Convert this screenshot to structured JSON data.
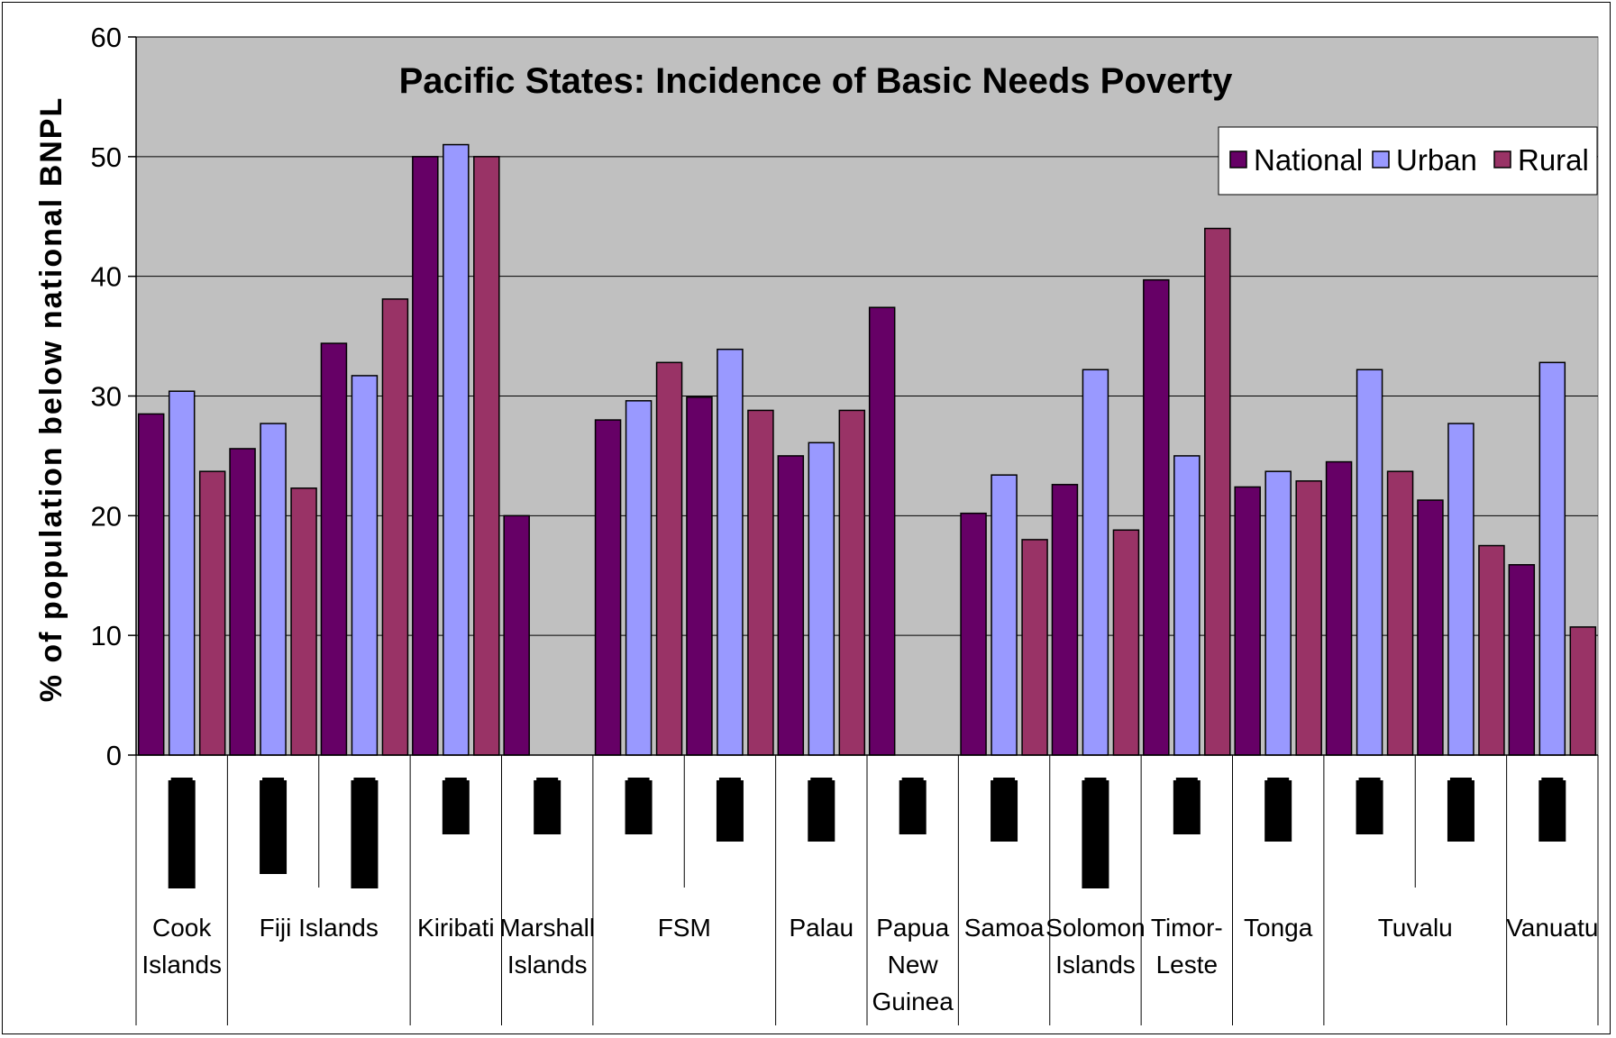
{
  "chart_data": {
    "type": "bar",
    "title": "Pacific States: Incidence of Basic Needs Poverty",
    "xlabel": "",
    "ylabel": "% of population below national BNPL",
    "ylim": [
      0,
      60
    ],
    "yticks": [
      0,
      10,
      20,
      30,
      40,
      50,
      60
    ],
    "grid": true,
    "legend_position": "top-right",
    "categories": [
      "Cook Islands",
      "Fiji Islands",
      "",
      "Kiribati",
      "Marshall Islands",
      "FSM",
      "",
      "Palau",
      "Papua New Guinea",
      "Samoa",
      "Solomon Islands",
      "Timor-Leste",
      "Tonga",
      "Tuvalu",
      "",
      "Vanuatu"
    ],
    "category_lines": [
      [
        "Cook",
        "Islands"
      ],
      [
        "Fiji Islands"
      ],
      [],
      [
        "Kiribati"
      ],
      [
        "Marshall",
        "Islands"
      ],
      [
        "FSM"
      ],
      [],
      [
        "Palau"
      ],
      [
        "Papua",
        "New",
        "Guinea"
      ],
      [
        "Samoa"
      ],
      [
        "Solomon",
        "Islands"
      ],
      [
        "Timor-",
        "Leste"
      ],
      [
        "Tonga"
      ],
      [
        "Tuvalu"
      ],
      [],
      [
        "Vanuatu"
      ]
    ],
    "redacted_label_heights": [
      3,
      2.6,
      3,
      1.5,
      1.5,
      1.5,
      1.7,
      1.7,
      1.5,
      1.7,
      3,
      1.5,
      1.7,
      1.5,
      1.7,
      1.7
    ],
    "series": [
      {
        "name": "National",
        "color": "#660066",
        "values": [
          28.5,
          25.6,
          34.4,
          50.0,
          20.0,
          28.0,
          29.9,
          25.0,
          37.4,
          20.2,
          22.6,
          39.7,
          22.4,
          24.5,
          21.3,
          15.9
        ]
      },
      {
        "name": "Urban",
        "color": "#9999ff",
        "values": [
          30.4,
          27.7,
          31.7,
          51.0,
          null,
          29.6,
          33.9,
          26.1,
          null,
          23.4,
          32.2,
          25.0,
          23.7,
          32.2,
          27.7,
          32.8
        ]
      },
      {
        "name": "Rural",
        "color": "#993366",
        "values": [
          23.7,
          22.3,
          38.1,
          50.0,
          null,
          32.8,
          28.8,
          28.8,
          null,
          18.0,
          18.8,
          44.0,
          22.9,
          23.7,
          17.5,
          10.7
        ]
      }
    ]
  },
  "colors": {
    "plot_background": "#c0c0c0",
    "gridline": "#000000",
    "redaction": "#000000"
  }
}
